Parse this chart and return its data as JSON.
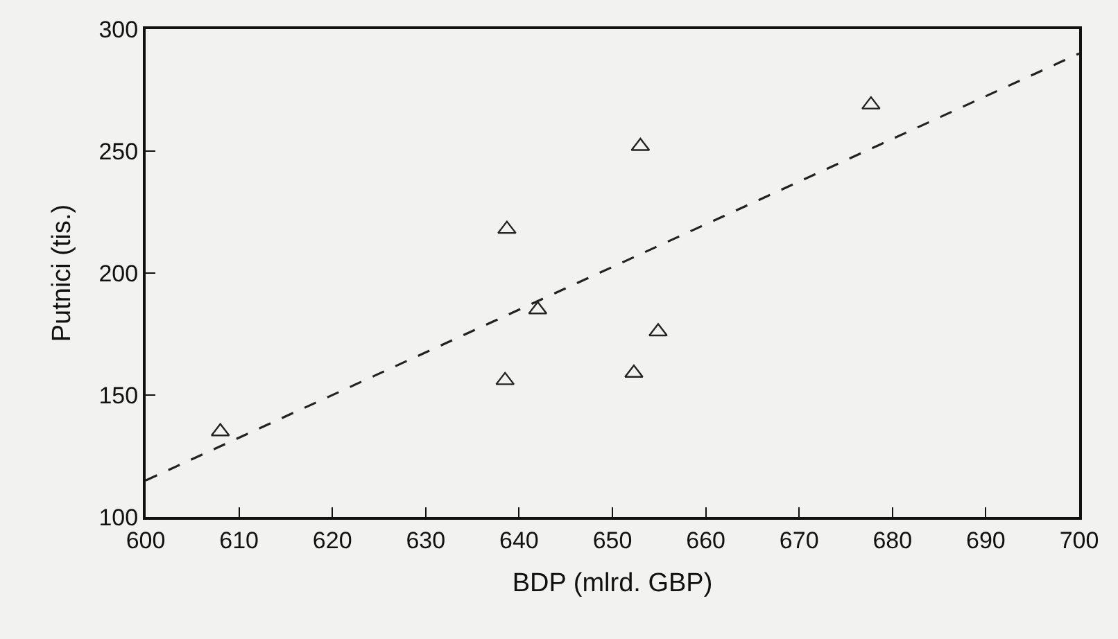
{
  "chart_data": {
    "type": "scatter",
    "xlabel": "BDP (mlrd. GBP)",
    "ylabel": "Putnici (tis.)",
    "xlim": [
      600,
      700
    ],
    "xticks": [
      600,
      610,
      620,
      630,
      640,
      650,
      660,
      670,
      680,
      690,
      700
    ],
    "ylim": [
      100,
      300
    ],
    "yticks": [
      100,
      150,
      200,
      250,
      300
    ],
    "series": [
      {
        "color": "#222222",
        "marker": "triangle",
        "x": [
          608,
          638.7,
          642,
          638.5,
          653,
          654.9,
          652.3,
          677.7
        ],
        "values": [
          135,
          218,
          185,
          156,
          252,
          176,
          159,
          269
        ]
      },
      {
        "type": "line",
        "color": "#222222",
        "line_style": "dashed",
        "marker": "none",
        "x": [
          600,
          700
        ],
        "values": [
          115,
          290
        ]
      }
    ]
  }
}
